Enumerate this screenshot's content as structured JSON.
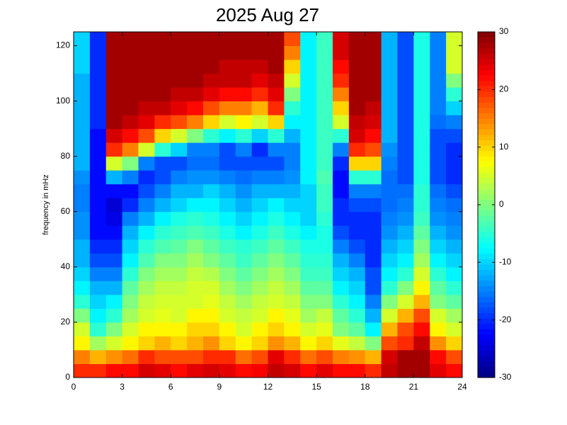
{
  "chart_data": {
    "type": "heatmap",
    "title": "2025 Aug 27",
    "ylabel": "frequency in mHz",
    "xlim": [
      0,
      24
    ],
    "xticks": [
      0,
      3,
      6,
      9,
      12,
      15,
      18,
      21,
      24
    ],
    "ylim": [
      0,
      125
    ],
    "yticks": [
      0,
      20,
      40,
      60,
      80,
      100,
      120
    ],
    "clim": [
      -30,
      30
    ],
    "cticks": [
      -30,
      -20,
      -10,
      0,
      10,
      20,
      30
    ],
    "colormap": "jet",
    "values": [
      [
        20,
        20,
        22,
        22,
        25,
        24,
        22,
        24,
        25,
        24,
        22,
        23,
        26,
        25,
        22,
        24,
        22,
        22,
        20,
        26,
        28,
        28,
        24,
        22
      ],
      [
        15,
        12,
        14,
        16,
        20,
        18,
        18,
        18,
        20,
        20,
        16,
        18,
        24,
        20,
        16,
        18,
        15,
        14,
        12,
        25,
        28,
        28,
        22,
        18
      ],
      [
        8,
        2,
        5,
        8,
        10,
        12,
        10,
        12,
        14,
        10,
        8,
        10,
        14,
        12,
        8,
        10,
        6,
        4,
        0,
        18,
        20,
        26,
        14,
        10
      ],
      [
        5,
        -5,
        0,
        5,
        8,
        8,
        8,
        10,
        10,
        8,
        5,
        8,
        10,
        8,
        5,
        6,
        0,
        -2,
        -8,
        12,
        18,
        22,
        8,
        5
      ],
      [
        0,
        -8,
        -5,
        2,
        5,
        6,
        5,
        8,
        8,
        5,
        4,
        5,
        8,
        6,
        2,
        4,
        -2,
        -5,
        -12,
        5,
        12,
        18,
        5,
        2
      ],
      [
        -5,
        -10,
        -8,
        0,
        4,
        5,
        5,
        5,
        6,
        4,
        2,
        4,
        5,
        4,
        0,
        0,
        -5,
        -8,
        -15,
        0,
        5,
        12,
        0,
        -2
      ],
      [
        -8,
        -12,
        -12,
        -2,
        2,
        4,
        4,
        5,
        5,
        2,
        0,
        2,
        4,
        2,
        -2,
        -2,
        -8,
        -10,
        -18,
        -5,
        0,
        8,
        -2,
        -5
      ],
      [
        -10,
        -15,
        -15,
        -5,
        0,
        2,
        2,
        4,
        3,
        0,
        -2,
        0,
        2,
        0,
        -4,
        -4,
        -10,
        -12,
        -18,
        -8,
        -5,
        5,
        -5,
        -8
      ],
      [
        -12,
        -18,
        -18,
        -8,
        -3,
        0,
        0,
        2,
        0,
        -2,
        -4,
        -2,
        0,
        -2,
        -5,
        -5,
        -12,
        -15,
        -20,
        -10,
        -8,
        2,
        -8,
        -10
      ],
      [
        -12,
        -20,
        -20,
        -10,
        -5,
        -3,
        -2,
        0,
        -2,
        -4,
        -5,
        -4,
        -2,
        -4,
        -6,
        -6,
        -15,
        -18,
        -20,
        -12,
        -10,
        0,
        -10,
        -12
      ],
      [
        -14,
        -22,
        -22,
        -12,
        -8,
        -5,
        -4,
        -3,
        -4,
        -6,
        -8,
        -6,
        -4,
        -6,
        -8,
        -6,
        -18,
        -20,
        -20,
        -14,
        -12,
        -2,
        -12,
        -14
      ],
      [
        -14,
        -22,
        -24,
        -15,
        -12,
        -8,
        -6,
        -5,
        -6,
        -8,
        -10,
        -8,
        -6,
        -8,
        -10,
        -5,
        -20,
        -20,
        -20,
        -15,
        -14,
        -4,
        -14,
        -15
      ],
      [
        -15,
        -22,
        -25,
        -20,
        -15,
        -12,
        -10,
        -8,
        -8,
        -10,
        -12,
        -10,
        -8,
        -10,
        -10,
        -4,
        -20,
        -18,
        -18,
        -16,
        -15,
        -5,
        -15,
        -16
      ],
      [
        -15,
        -22,
        -22,
        -22,
        -18,
        -15,
        -12,
        -12,
        -10,
        -12,
        -14,
        -12,
        -12,
        -12,
        -10,
        -4,
        -22,
        -15,
        -15,
        -16,
        -16,
        -5,
        -16,
        -18
      ],
      [
        -14,
        -22,
        -12,
        -15,
        -20,
        -18,
        -15,
        -14,
        -14,
        -15,
        -16,
        -15,
        -15,
        -14,
        -8,
        -3,
        -22,
        -5,
        -5,
        -16,
        -18,
        -6,
        -18,
        -20
      ],
      [
        -12,
        -22,
        5,
        0,
        -15,
        -18,
        -18,
        -16,
        -16,
        -18,
        -18,
        -18,
        -18,
        -15,
        -8,
        -4,
        -20,
        10,
        10,
        -15,
        -18,
        -6,
        -18,
        -20
      ],
      [
        -12,
        -22,
        20,
        15,
        5,
        -5,
        -10,
        -15,
        -15,
        -18,
        -15,
        -20,
        -15,
        -15,
        -8,
        -4,
        -15,
        20,
        18,
        -14,
        -18,
        -6,
        -18,
        -20
      ],
      [
        -12,
        -22,
        25,
        22,
        18,
        10,
        5,
        0,
        -5,
        -8,
        -5,
        -10,
        -5,
        -12,
        -8,
        -4,
        -5,
        25,
        22,
        -12,
        -18,
        -6,
        -18,
        -18
      ],
      [
        -12,
        -20,
        28,
        26,
        24,
        20,
        18,
        15,
        10,
        5,
        8,
        5,
        10,
        -8,
        -8,
        -4,
        5,
        26,
        25,
        -12,
        -18,
        -6,
        -16,
        -15
      ],
      [
        -12,
        -20,
        28,
        28,
        26,
        26,
        24,
        22,
        18,
        15,
        15,
        12,
        20,
        -5,
        -8,
        -4,
        10,
        28,
        26,
        -12,
        -18,
        -6,
        -15,
        -10
      ],
      [
        -12,
        -20,
        28,
        28,
        28,
        28,
        26,
        26,
        24,
        22,
        22,
        20,
        24,
        0,
        -8,
        -4,
        15,
        28,
        28,
        -12,
        -18,
        -6,
        -15,
        -5
      ],
      [
        -12,
        -20,
        28,
        28,
        28,
        28,
        28,
        28,
        26,
        26,
        26,
        24,
        26,
        5,
        -8,
        -4,
        20,
        28,
        28,
        -12,
        -18,
        -6,
        -15,
        0
      ],
      [
        -10,
        -20,
        28,
        28,
        28,
        28,
        28,
        28,
        28,
        26,
        26,
        26,
        28,
        10,
        -8,
        -4,
        22,
        28,
        28,
        -12,
        -18,
        -6,
        -15,
        5
      ],
      [
        -10,
        -20,
        28,
        28,
        28,
        28,
        28,
        28,
        28,
        28,
        28,
        28,
        28,
        15,
        -8,
        -4,
        25,
        28,
        28,
        -12,
        -18,
        -6,
        -15,
        5
      ],
      [
        -10,
        -20,
        28,
        28,
        28,
        28,
        28,
        28,
        28,
        28,
        28,
        28,
        28,
        18,
        -8,
        -4,
        25,
        28,
        28,
        -12,
        -18,
        -6,
        -15,
        5
      ]
    ]
  }
}
